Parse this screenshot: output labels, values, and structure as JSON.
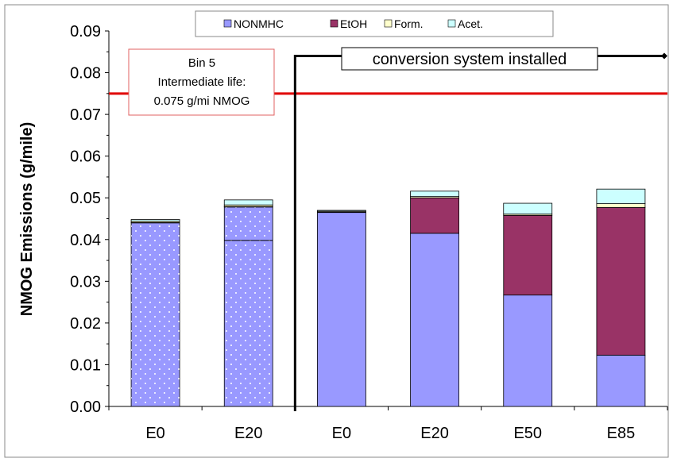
{
  "chart_data": {
    "type": "bar",
    "stacked": true,
    "ylabel": "NMOG Emissions (g/mile)",
    "xlabel": "",
    "ylim": [
      0,
      0.09
    ],
    "yticks": [
      "0.00",
      "0.01",
      "0.02",
      "0.03",
      "0.04",
      "0.05",
      "0.06",
      "0.07",
      "0.08",
      "0.09"
    ],
    "categories": [
      "E0",
      "E20",
      "E0",
      "E20",
      "E50",
      "E85"
    ],
    "hatched_categories": [
      0,
      1
    ],
    "series": [
      {
        "name": "NONMHC",
        "color": "#9999ff",
        "values": [
          0.044,
          0.0478,
          0.0465,
          0.0415,
          0.0267,
          0.0123
        ]
      },
      {
        "name": "EtOH",
        "color": "#993366",
        "values": [
          0.0001,
          0.0001,
          0.0001,
          0.0085,
          0.0191,
          0.0354
        ]
      },
      {
        "name": "Form.",
        "color": "#ffffcc",
        "values": [
          0.0003,
          0.0004,
          0.0002,
          0.0003,
          0.0003,
          0.0009
        ]
      },
      {
        "name": "Acet.",
        "color": "#ccffff",
        "values": [
          0.0004,
          0.0012,
          0.0002,
          0.0013,
          0.0026,
          0.0035
        ]
      }
    ],
    "inner_marker": {
      "category_index": 1,
      "value": 0.0398
    },
    "reference_line": {
      "value": 0.075,
      "color": "#e00000"
    },
    "annotations": {
      "bin5": [
        "Bin 5",
        "Intermediate life:",
        "0.075 g/mi NMOG"
      ],
      "conversion": "conversion system installed",
      "conversion_level": 0.084
    },
    "legend_position": "top-center",
    "grid": false
  }
}
